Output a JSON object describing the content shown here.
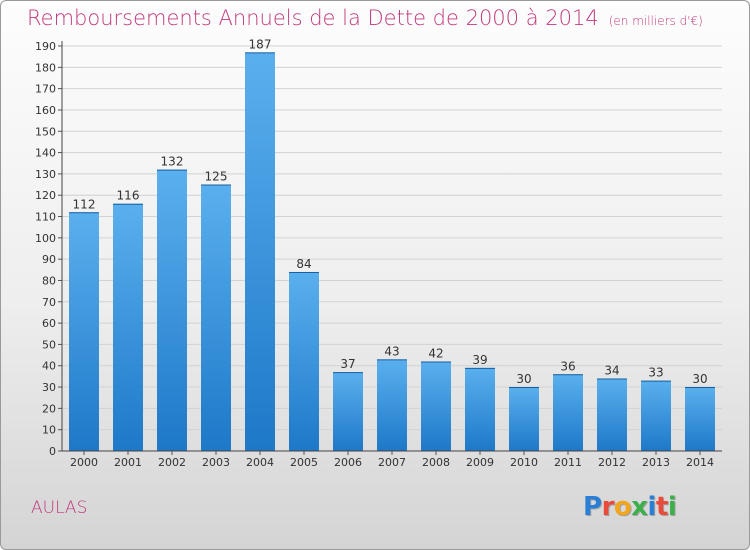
{
  "title": "Remboursements Annuels de la Dette de 2000 à 2014",
  "unit_note": "(en milliers d'€)",
  "commune": "AULAS",
  "logo": {
    "text": "Proxiti",
    "colors": [
      "#2a7fd4",
      "#e94a3a",
      "#f2a51e",
      "#3bb04a",
      "#2a7fd4",
      "#e94a3a",
      "#3bb04a"
    ]
  },
  "colors": {
    "bar_top": "#5ab0ee",
    "bar_bottom": "#1e78c8",
    "title": "#c0397d"
  },
  "chart_data": {
    "type": "bar",
    "categories": [
      "2000",
      "2001",
      "2002",
      "2003",
      "2004",
      "2005",
      "2006",
      "2007",
      "2008",
      "2009",
      "2010",
      "2011",
      "2012",
      "2013",
      "2014"
    ],
    "values": [
      112,
      116,
      132,
      125,
      187,
      84,
      37,
      43,
      42,
      39,
      30,
      36,
      34,
      33,
      30
    ],
    "ylim": [
      0,
      190
    ],
    "yticks": [
      0,
      10,
      20,
      30,
      40,
      50,
      60,
      70,
      80,
      90,
      100,
      110,
      120,
      130,
      140,
      150,
      160,
      170,
      180,
      190
    ],
    "grid": true,
    "data_labels": true
  }
}
